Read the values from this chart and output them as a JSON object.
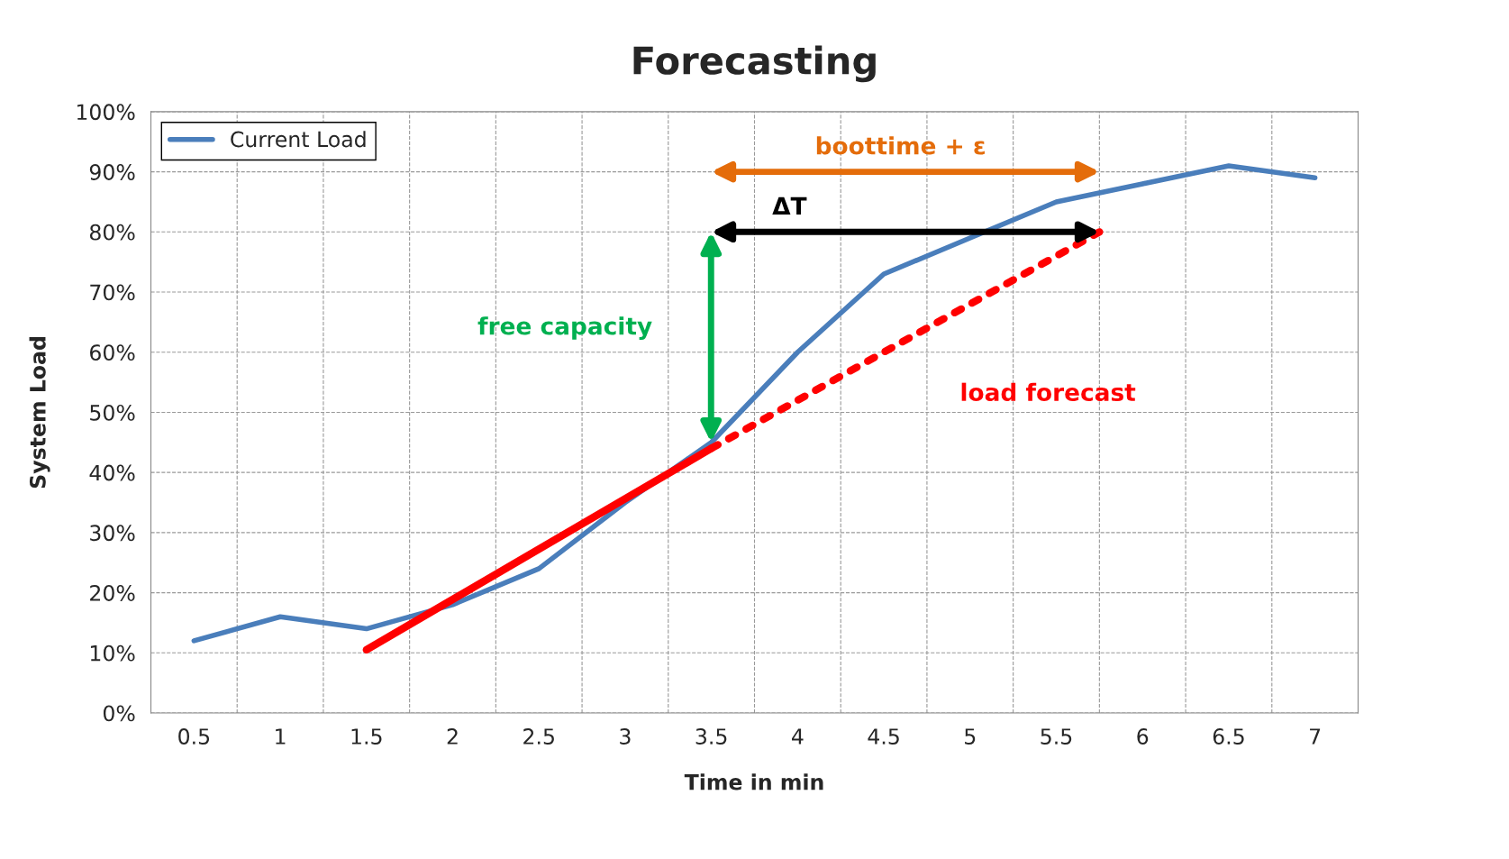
{
  "chart_data": {
    "type": "line",
    "title": "Forecasting",
    "xlabel": "Time in min",
    "ylabel": "System Load",
    "x": [
      0.5,
      1,
      1.5,
      2,
      2.5,
      3,
      3.5,
      4,
      4.5,
      5,
      5.5,
      6,
      6.5,
      7
    ],
    "series": [
      {
        "name": "Current Load",
        "color": "#4a7ebb",
        "values": [
          12,
          16,
          14,
          18,
          24,
          35,
          45,
          60,
          73,
          79,
          85,
          88,
          91,
          89
        ]
      },
      {
        "color": "#ff0000",
        "x": [
          1.5,
          3.5
        ],
        "values": [
          10.5,
          44
        ]
      },
      {
        "color": "#ff0000",
        "x": [
          3.5,
          5.75
        ],
        "values": [
          44,
          80
        ],
        "line_style": "dotted"
      }
    ],
    "annotations": [
      "boottime + ε",
      "ΔT",
      "free capacity",
      "load forecast"
    ],
    "xlim": [
      0.25,
      7.25
    ],
    "xticks": [
      0.5,
      1,
      1.5,
      2,
      2.5,
      3,
      3.5,
      4,
      4.5,
      5,
      5.5,
      6,
      6.5,
      7
    ],
    "ylim": [
      0,
      100
    ],
    "yticks": [
      {
        "value": 0,
        "label": "0%"
      },
      {
        "value": 10,
        "label": "10%"
      },
      {
        "value": 20,
        "label": "20%"
      },
      {
        "value": 30,
        "label": "30%"
      },
      {
        "value": 40,
        "label": "40%"
      },
      {
        "value": 50,
        "label": "50%"
      },
      {
        "value": 60,
        "label": "60%"
      },
      {
        "value": 70,
        "label": "70%"
      },
      {
        "value": 80,
        "label": "80%"
      },
      {
        "value": 90,
        "label": "90%"
      },
      {
        "value": 100,
        "label": "100%"
      }
    ],
    "grid": true,
    "legend": "top left",
    "marker": "none",
    "line_style": "solid"
  }
}
